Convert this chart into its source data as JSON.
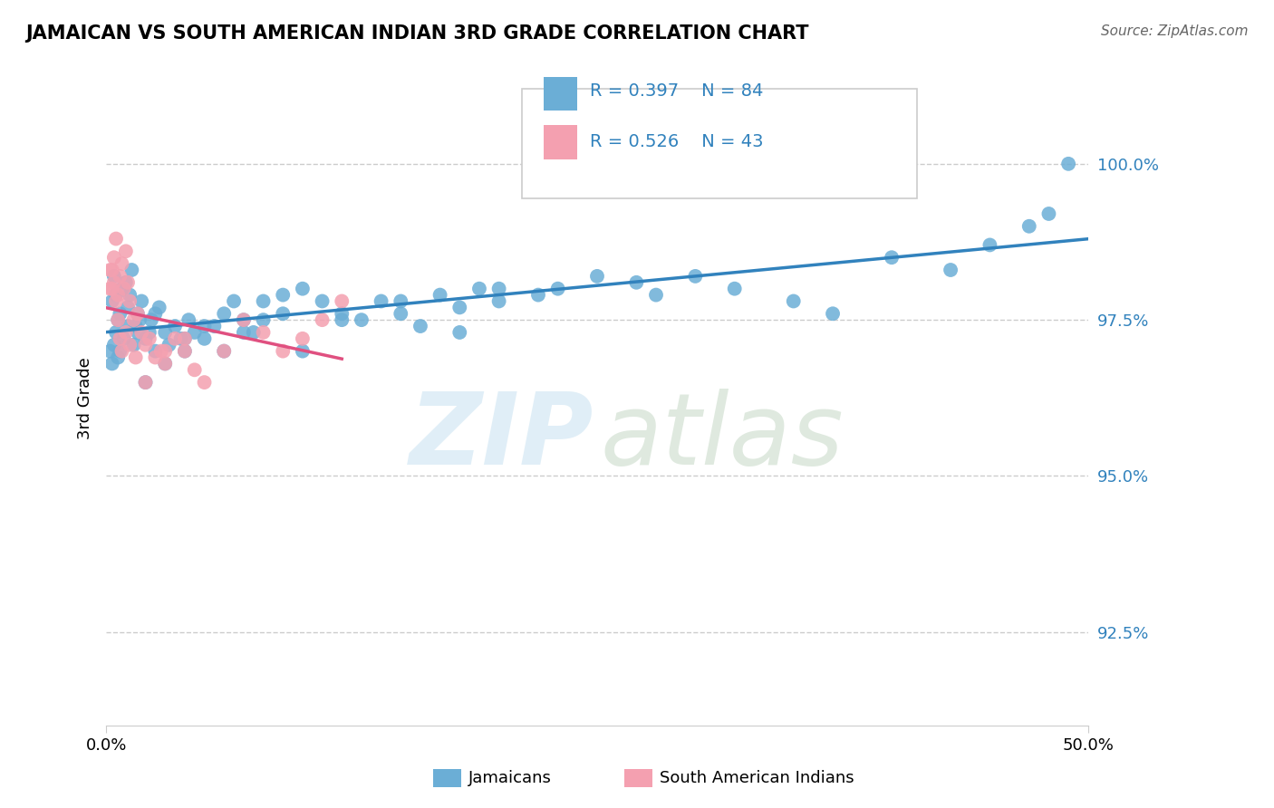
{
  "title": "JAMAICAN VS SOUTH AMERICAN INDIAN 3RD GRADE CORRELATION CHART",
  "source_text": "Source: ZipAtlas.com",
  "ylabel": "3rd Grade",
  "xlim": [
    0.0,
    50.0
  ],
  "ylim": [
    91.0,
    101.5
  ],
  "legend_r1": "R = 0.397",
  "legend_n1": "N = 84",
  "legend_r2": "R = 0.526",
  "legend_n2": "N = 43",
  "legend_label1": "Jamaicans",
  "legend_label2": "South American Indians",
  "blue_color": "#6baed6",
  "pink_color": "#f4a0b0",
  "blue_line_color": "#3182bd",
  "pink_line_color": "#e05080",
  "blue_x": [
    0.3,
    0.4,
    0.5,
    0.6,
    0.7,
    0.8,
    1.0,
    1.1,
    1.2,
    1.3,
    1.5,
    1.6,
    1.7,
    1.8,
    2.0,
    2.2,
    2.3,
    2.5,
    2.7,
    3.0,
    3.2,
    3.5,
    3.8,
    4.0,
    4.2,
    4.5,
    5.0,
    5.5,
    6.0,
    6.5,
    7.0,
    7.5,
    8.0,
    9.0,
    10.0,
    11.0,
    12.0,
    13.0,
    14.0,
    15.0,
    16.0,
    17.0,
    18.0,
    19.0,
    20.0,
    22.0,
    23.0,
    25.0,
    27.0,
    28.0,
    30.0,
    32.0,
    35.0,
    37.0,
    40.0,
    43.0,
    45.0,
    47.0,
    48.0,
    49.0,
    0.2,
    0.3,
    0.4,
    0.5,
    0.6,
    0.7,
    0.9,
    1.1,
    1.4,
    1.6,
    2.0,
    2.5,
    3.0,
    4.0,
    5.0,
    6.0,
    7.0,
    8.0,
    9.0,
    10.0,
    12.0,
    15.0,
    18.0,
    20.0
  ],
  "blue_y": [
    97.8,
    98.2,
    97.9,
    97.5,
    97.6,
    98.0,
    98.1,
    97.7,
    97.9,
    98.3,
    97.4,
    97.6,
    97.5,
    97.8,
    97.2,
    97.3,
    97.5,
    97.6,
    97.7,
    97.3,
    97.1,
    97.4,
    97.2,
    97.0,
    97.5,
    97.3,
    97.2,
    97.4,
    97.6,
    97.8,
    97.5,
    97.3,
    97.8,
    97.9,
    98.0,
    97.8,
    97.6,
    97.5,
    97.8,
    97.6,
    97.4,
    97.9,
    97.7,
    98.0,
    97.8,
    97.9,
    98.0,
    98.2,
    98.1,
    97.9,
    98.2,
    98.0,
    97.8,
    97.6,
    98.5,
    98.3,
    98.7,
    99.0,
    99.2,
    100.0,
    97.0,
    96.8,
    97.1,
    97.3,
    96.9,
    97.0,
    97.2,
    97.4,
    97.1,
    97.3,
    96.5,
    97.0,
    96.8,
    97.2,
    97.4,
    97.0,
    97.3,
    97.5,
    97.6,
    97.0,
    97.5,
    97.8,
    97.3,
    98.0
  ],
  "pink_x": [
    0.2,
    0.3,
    0.4,
    0.5,
    0.6,
    0.7,
    0.8,
    0.9,
    1.0,
    1.1,
    1.2,
    1.4,
    1.6,
    1.8,
    2.0,
    2.2,
    2.5,
    2.8,
    3.0,
    3.5,
    4.0,
    4.5,
    5.0,
    6.0,
    7.0,
    8.0,
    9.0,
    10.0,
    11.0,
    12.0,
    0.2,
    0.3,
    0.4,
    0.5,
    0.6,
    0.7,
    0.8,
    1.0,
    1.2,
    1.5,
    2.0,
    3.0,
    4.0
  ],
  "pink_y": [
    98.3,
    98.0,
    98.5,
    98.8,
    97.9,
    98.2,
    98.4,
    98.0,
    98.6,
    98.1,
    97.8,
    97.5,
    97.6,
    97.3,
    97.1,
    97.2,
    96.9,
    97.0,
    96.8,
    97.2,
    97.0,
    96.7,
    96.5,
    97.0,
    97.5,
    97.3,
    97.0,
    97.2,
    97.5,
    97.8,
    98.0,
    98.3,
    98.1,
    97.8,
    97.5,
    97.2,
    97.0,
    97.3,
    97.1,
    96.9,
    96.5,
    97.0,
    97.2
  ]
}
